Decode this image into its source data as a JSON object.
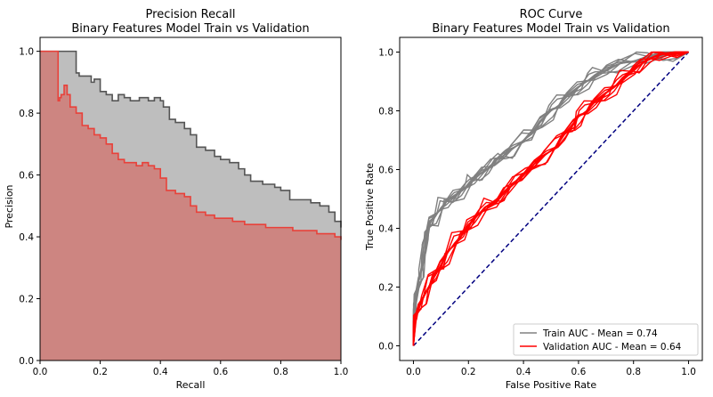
{
  "chart_data": [
    {
      "type": "area",
      "title": "Precision Recall",
      "subtitle": "Binary Features Model Train vs Validation",
      "xlabel": "Recall",
      "ylabel": "Precision",
      "xlim": [
        0,
        1
      ],
      "ylim": [
        0,
        1.045
      ],
      "xticks": [
        "0.0",
        "0.2",
        "0.4",
        "0.6",
        "0.8",
        "1.0"
      ],
      "yticks": [
        "0.0",
        "0.2",
        "0.4",
        "0.6",
        "0.8",
        "1.0"
      ],
      "series": [
        {
          "color": "#bebebe",
          "line_color": "#555555",
          "x": [
            0,
            0.12,
            0.12,
            0.13,
            0.14,
            0.17,
            0.18,
            0.2,
            0.22,
            0.24,
            0.26,
            0.28,
            0.3,
            0.33,
            0.36,
            0.38,
            0.4,
            0.41,
            0.43,
            0.45,
            0.48,
            0.5,
            0.52,
            0.55,
            0.58,
            0.6,
            0.63,
            0.66,
            0.68,
            0.7,
            0.74,
            0.78,
            0.8,
            0.83,
            0.86,
            0.9,
            0.93,
            0.96,
            0.98,
            1.0
          ],
          "y": [
            1.0,
            1.0,
            0.93,
            0.92,
            0.92,
            0.9,
            0.91,
            0.87,
            0.86,
            0.84,
            0.86,
            0.85,
            0.84,
            0.85,
            0.84,
            0.85,
            0.84,
            0.82,
            0.78,
            0.77,
            0.75,
            0.73,
            0.69,
            0.68,
            0.66,
            0.65,
            0.64,
            0.62,
            0.6,
            0.58,
            0.57,
            0.56,
            0.55,
            0.52,
            0.52,
            0.51,
            0.5,
            0.48,
            0.45,
            0.43
          ]
        },
        {
          "color": "#cd8581",
          "line_color": "#e8413a",
          "x": [
            0,
            0.06,
            0.06,
            0.065,
            0.07,
            0.08,
            0.09,
            0.1,
            0.12,
            0.14,
            0.16,
            0.18,
            0.2,
            0.22,
            0.24,
            0.26,
            0.28,
            0.3,
            0.32,
            0.34,
            0.36,
            0.38,
            0.4,
            0.42,
            0.45,
            0.48,
            0.5,
            0.52,
            0.55,
            0.58,
            0.6,
            0.64,
            0.68,
            0.72,
            0.75,
            0.78,
            0.8,
            0.84,
            0.88,
            0.92,
            0.95,
            0.98,
            1.0
          ],
          "y": [
            1.0,
            1.0,
            0.84,
            0.85,
            0.86,
            0.89,
            0.86,
            0.82,
            0.8,
            0.76,
            0.75,
            0.73,
            0.72,
            0.7,
            0.67,
            0.65,
            0.64,
            0.64,
            0.63,
            0.64,
            0.63,
            0.62,
            0.59,
            0.55,
            0.54,
            0.53,
            0.5,
            0.48,
            0.47,
            0.46,
            0.46,
            0.45,
            0.44,
            0.44,
            0.43,
            0.43,
            0.43,
            0.42,
            0.42,
            0.41,
            0.41,
            0.4,
            0.39
          ]
        }
      ]
    },
    {
      "type": "line",
      "title": "ROC Curve",
      "subtitle": "Binary Features Model Train vs Validation",
      "xlabel": "False Positive Rate",
      "ylabel": "True Positive Rate",
      "xlim": [
        -0.05,
        1.05
      ],
      "ylim": [
        -0.05,
        1.05
      ],
      "xticks": [
        "0.0",
        "0.2",
        "0.4",
        "0.6",
        "0.8",
        "1.0"
      ],
      "yticks": [
        "0.0",
        "0.2",
        "0.4",
        "0.6",
        "0.8",
        "1.0"
      ],
      "legend_position": "bottom-right",
      "series": [
        {
          "name": "Train AUC - Mean = 0.74",
          "color": "#808080",
          "x": [
            0,
            0.005,
            0.01,
            0.02,
            0.03,
            0.04,
            0.05,
            0.06,
            0.08,
            0.1,
            0.12,
            0.15,
            0.18,
            0.2,
            0.22,
            0.25,
            0.28,
            0.3,
            0.33,
            0.36,
            0.4,
            0.43,
            0.46,
            0.5,
            0.53,
            0.56,
            0.6,
            0.63,
            0.66,
            0.7,
            0.75,
            0.8,
            0.85,
            0.9,
            0.95,
            1.0
          ],
          "y": [
            0,
            0.12,
            0.17,
            0.22,
            0.26,
            0.32,
            0.38,
            0.42,
            0.44,
            0.47,
            0.49,
            0.51,
            0.53,
            0.55,
            0.57,
            0.59,
            0.61,
            0.63,
            0.65,
            0.67,
            0.7,
            0.72,
            0.76,
            0.8,
            0.82,
            0.85,
            0.88,
            0.9,
            0.92,
            0.94,
            0.96,
            0.97,
            0.98,
            0.99,
            1.0,
            1.0
          ]
        },
        {
          "name": "Validation AUC - Mean = 0.64",
          "color": "#ff0000",
          "x": [
            0,
            0.005,
            0.01,
            0.02,
            0.04,
            0.06,
            0.08,
            0.1,
            0.12,
            0.15,
            0.18,
            0.2,
            0.23,
            0.26,
            0.3,
            0.33,
            0.36,
            0.4,
            0.44,
            0.48,
            0.52,
            0.55,
            0.58,
            0.6,
            0.63,
            0.66,
            0.7,
            0.73,
            0.76,
            0.8,
            0.83,
            0.86,
            0.9,
            0.95,
            1.0
          ],
          "y": [
            0,
            0.08,
            0.1,
            0.13,
            0.17,
            0.21,
            0.24,
            0.27,
            0.31,
            0.35,
            0.38,
            0.41,
            0.44,
            0.47,
            0.49,
            0.52,
            0.55,
            0.58,
            0.62,
            0.65,
            0.68,
            0.72,
            0.75,
            0.78,
            0.8,
            0.83,
            0.86,
            0.88,
            0.91,
            0.94,
            0.96,
            0.98,
            0.99,
            1.0,
            1.0
          ]
        },
        {
          "color": "#000080",
          "style": "dashed",
          "x": [
            0,
            1
          ],
          "y": [
            0,
            1
          ]
        }
      ]
    }
  ]
}
